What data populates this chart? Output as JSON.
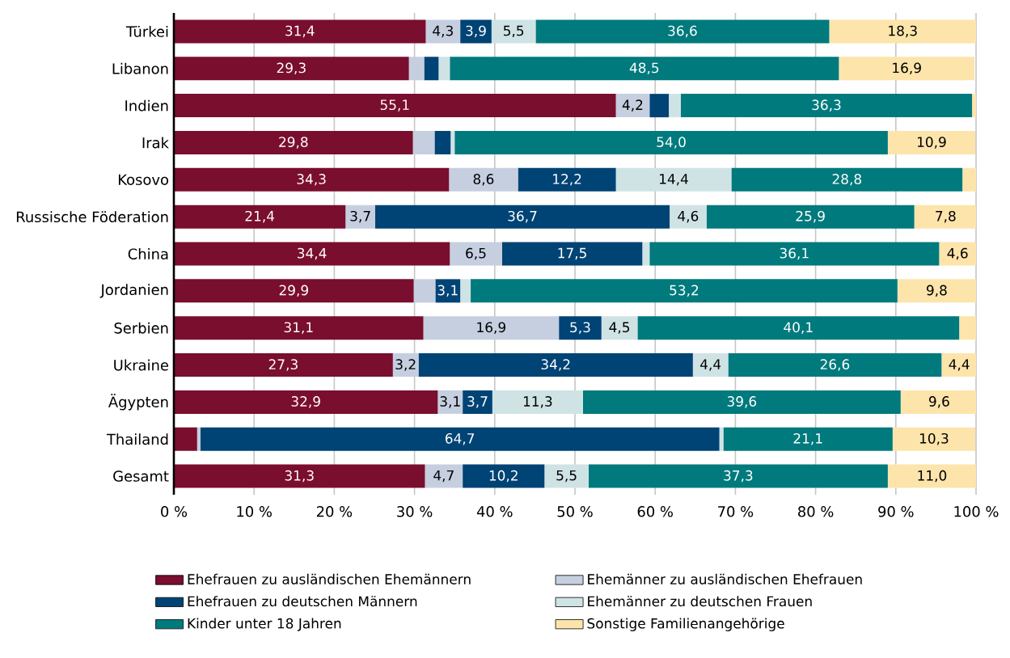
{
  "chart_data": {
    "type": "bar",
    "orientation": "horizontal",
    "stacked": true,
    "categories": [
      "Türkei",
      "Libanon",
      "Indien",
      "Irak",
      "Kosovo",
      "Russische Föderation",
      "China",
      "Jordanien",
      "Serbien",
      "Ukraine",
      "Ägypten",
      "Thailand",
      "Gesamt"
    ],
    "series": [
      {
        "name": "Ehefrauen zu ausländischen Ehemännern",
        "color": "#7a0e2e",
        "values": [
          31.4,
          29.3,
          55.1,
          29.8,
          34.3,
          21.4,
          34.4,
          29.9,
          31.1,
          27.3,
          32.9,
          2.9,
          31.3
        ],
        "value_labels": [
          "31,4",
          "29,3",
          "55,1",
          "29,8",
          "34,3",
          "21,4",
          "34,4",
          "29,9",
          "31,1",
          "27,3",
          "32,9",
          null,
          "31,3"
        ]
      },
      {
        "name": "Ehemänner zu ausländischen Ehefrauen",
        "color": "#c5cfe0",
        "values": [
          4.3,
          1.9,
          4.2,
          2.7,
          8.6,
          3.7,
          6.5,
          2.7,
          16.9,
          3.2,
          3.1,
          0.4,
          4.7
        ],
        "value_labels": [
          "4,3",
          null,
          "4,2",
          null,
          "8,6",
          "3,7",
          "6,5",
          null,
          "16,9",
          "3,2",
          "3,1",
          null,
          "4,7"
        ]
      },
      {
        "name": "Ehefrauen zu deutschen Männern",
        "color": "#004375",
        "values": [
          3.9,
          1.8,
          2.4,
          2.0,
          12.2,
          36.7,
          17.5,
          3.1,
          5.3,
          34.2,
          3.7,
          64.7,
          10.2
        ],
        "value_labels": [
          "3,9",
          null,
          null,
          null,
          "12,2",
          "36,7",
          "17,5",
          "3,1",
          "5,3",
          "34,2",
          "3,7",
          "64,7",
          "10,2"
        ]
      },
      {
        "name": "Ehemänner zu deutschen Frauen",
        "color": "#cfe3e5",
        "values": [
          5.5,
          1.4,
          1.5,
          0.5,
          14.4,
          4.6,
          0.9,
          1.3,
          4.5,
          4.4,
          11.3,
          0.5,
          5.5
        ],
        "value_labels": [
          "5,5",
          null,
          null,
          null,
          "14,4",
          "4,6",
          null,
          null,
          "4,5",
          "4,4",
          "11,3",
          null,
          "5,5"
        ]
      },
      {
        "name": "Kinder unter 18 Jahren",
        "color": "#007a7d",
        "values": [
          36.6,
          48.5,
          36.3,
          54.0,
          28.8,
          25.9,
          36.1,
          53.2,
          40.1,
          26.6,
          39.6,
          21.1,
          37.3
        ],
        "value_labels": [
          "36,6",
          "48,5",
          "36,3",
          "54,0",
          "28,8",
          "25,9",
          "36,1",
          "53,2",
          "40,1",
          "26,6",
          "39,6",
          "21,1",
          "37,3"
        ]
      },
      {
        "name": "Sonstige Familienangehörige",
        "color": "#fde4ab",
        "values": [
          18.3,
          16.9,
          0.5,
          10.9,
          1.7,
          7.8,
          4.6,
          9.8,
          2.1,
          4.4,
          9.6,
          10.3,
          11.0
        ],
        "value_labels": [
          "18,3",
          "16,9",
          null,
          "10,9",
          null,
          "7,8",
          "4,6",
          "9,8",
          null,
          "4,4",
          "9,6",
          "10,3",
          "11,0"
        ]
      }
    ],
    "xlim": [
      0,
      100
    ],
    "xticks": [
      {
        "value": 0,
        "label": "0 %"
      },
      {
        "value": 10,
        "label": "10 %"
      },
      {
        "value": 20,
        "label": "20 %"
      },
      {
        "value": 30,
        "label": "30 %"
      },
      {
        "value": 40,
        "label": "40 %"
      },
      {
        "value": 50,
        "label": "50 %"
      },
      {
        "value": 60,
        "label": "60 %"
      },
      {
        "value": 70,
        "label": "70 %"
      },
      {
        "value": 80,
        "label": "80 %"
      },
      {
        "value": 90,
        "label": "90 %"
      },
      {
        "value": 100,
        "label": "100 %"
      }
    ],
    "grid": "x",
    "legend": "bottom"
  }
}
